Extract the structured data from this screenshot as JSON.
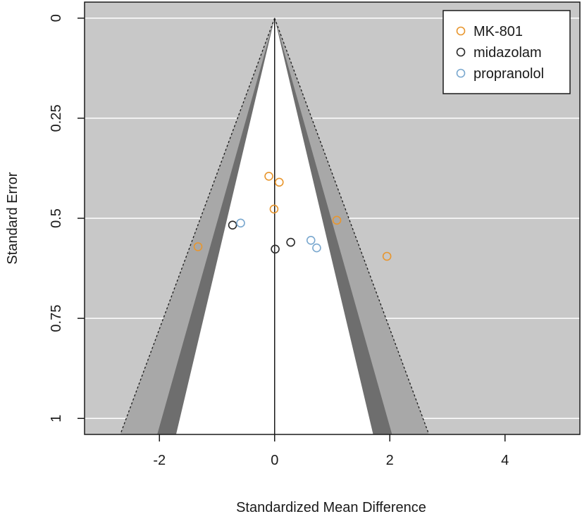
{
  "chart_data": {
    "type": "scatter",
    "xlabel": "Standardized Mean Difference",
    "ylabel": "Standard Error",
    "xlim": [
      -3.3,
      5.3
    ],
    "ylim": [
      1.04,
      -0.04
    ],
    "y_reversed": true,
    "x_ticks": [
      -2,
      0,
      2,
      4
    ],
    "x_tick_labels": [
      "-2",
      "0",
      "2",
      "4"
    ],
    "y_ticks": [
      0,
      0.25,
      0.5,
      0.75,
      1
    ],
    "y_tick_labels": [
      "0",
      "0.25",
      "0.5",
      "0.75",
      "1"
    ],
    "grid": "horizontal",
    "funnel": {
      "center": 0,
      "se_max": 1.04,
      "contour_regions": [
        {
          "z_inner": 1.645,
          "z_outer": 1.96,
          "color": "#6e6e6e"
        },
        {
          "z_inner": 1.96,
          "z_outer": 2.576,
          "color": "#a8a8a8"
        }
      ],
      "inner_color": "#ffffff",
      "outside_color": "#c8c8c8"
    },
    "legend": {
      "position": "top-right",
      "entries": [
        {
          "name": "MK-801",
          "color": "#e8962e"
        },
        {
          "name": "midazolam",
          "color": "#2a2a2a"
        },
        {
          "name": "propranolol",
          "color": "#7aa8cf"
        }
      ]
    },
    "series": [
      {
        "name": "MK-801",
        "color": "#e8962e",
        "points": [
          {
            "x": -0.1,
            "y": 0.395
          },
          {
            "x": 0.08,
            "y": 0.41
          },
          {
            "x": -0.01,
            "y": 0.477
          },
          {
            "x": 1.08,
            "y": 0.505
          },
          {
            "x": -1.33,
            "y": 0.571
          },
          {
            "x": 1.95,
            "y": 0.595
          }
        ]
      },
      {
        "name": "midazolam",
        "color": "#2a2a2a",
        "points": [
          {
            "x": -0.73,
            "y": 0.517
          },
          {
            "x": 0.28,
            "y": 0.56
          },
          {
            "x": 0.01,
            "y": 0.577
          }
        ]
      },
      {
        "name": "propranolol",
        "color": "#7aa8cf",
        "points": [
          {
            "x": -0.59,
            "y": 0.512
          },
          {
            "x": 0.63,
            "y": 0.555
          },
          {
            "x": 0.73,
            "y": 0.574
          }
        ]
      }
    ]
  }
}
